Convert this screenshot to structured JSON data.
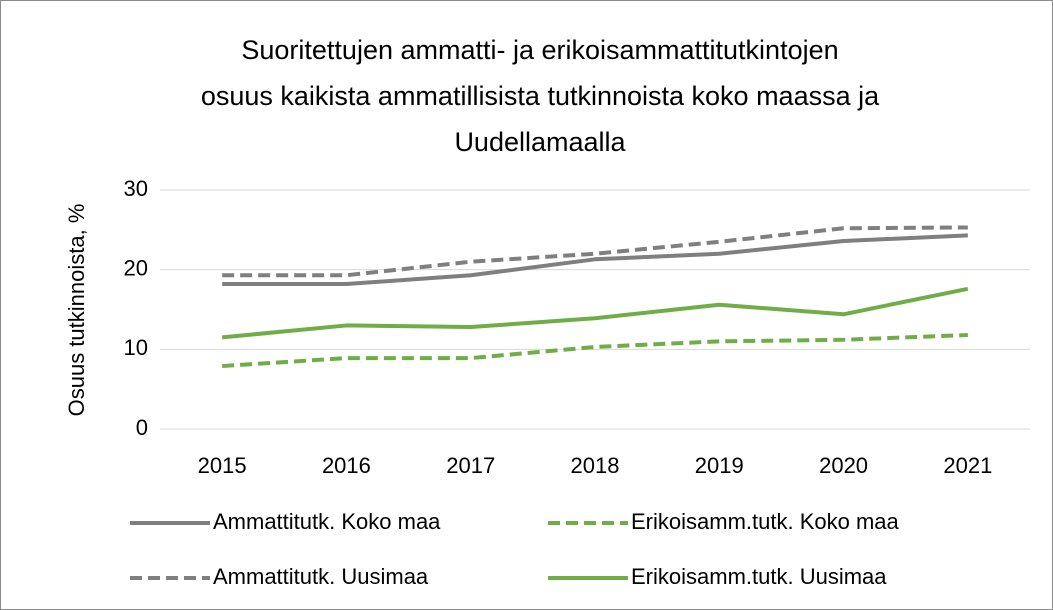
{
  "chart_data": {
    "type": "line",
    "title": [
      "Suoritettujen ammatti- ja erikoisammattitutkintojen",
      "osuus kaikista ammatillisista tutkinnoista koko maassa ja",
      "Uudellamaalla"
    ],
    "y_axis_label": "Osuus tutkinnoista, %",
    "categories": [
      "2015",
      "2016",
      "2017",
      "2018",
      "2019",
      "2020",
      "2021"
    ],
    "series": [
      {
        "name": "Ammattitutk. Koko maa",
        "color": "#7f7f7f",
        "dashed": false,
        "values": [
          18.2,
          18.2,
          19.3,
          21.3,
          22.0,
          23.6,
          24.3
        ]
      },
      {
        "name": "Erikoisamm.tutk. Koko maa",
        "color": "#70ad47",
        "dashed": true,
        "values": [
          7.9,
          8.9,
          8.9,
          10.3,
          11.0,
          11.2,
          11.8
        ]
      },
      {
        "name": "Ammattitutk. Uusimaa",
        "color": "#7f7f7f",
        "dashed": true,
        "values": [
          19.3,
          19.3,
          21.0,
          22.0,
          23.5,
          25.2,
          25.3
        ]
      },
      {
        "name": "Erikoisamm.tutk. Uusimaa",
        "color": "#70ad47",
        "dashed": false,
        "values": [
          11.5,
          13.0,
          12.8,
          13.9,
          15.6,
          14.4,
          17.6
        ]
      }
    ],
    "ylim": [
      0,
      30
    ],
    "yticks": [
      0,
      10,
      20,
      30
    ],
    "grid": true,
    "legend": "bottom"
  }
}
